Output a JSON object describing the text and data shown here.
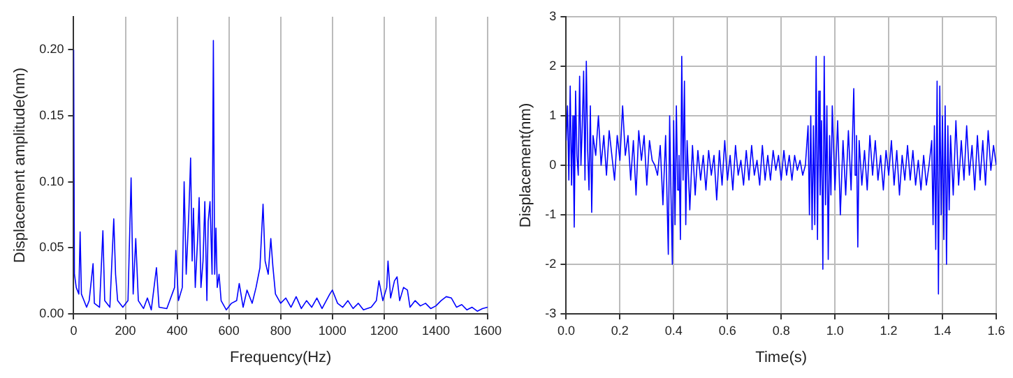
{
  "chart_data": [
    {
      "type": "line",
      "xlabel": "Frequency(Hz)",
      "ylabel": "Displacement amplitude(nm)",
      "xlim": [
        0,
        1600
      ],
      "xticks": [
        0,
        200,
        400,
        600,
        800,
        1000,
        1200,
        1400,
        1600
      ],
      "ylim": [
        0,
        0.225
      ],
      "yticks": [
        {
          "value": 0,
          "label": "0.00"
        },
        {
          "value": 0.05,
          "label": "0.05"
        },
        {
          "value": 0.1,
          "label": "0.10"
        },
        {
          "value": 0.15,
          "label": "0.15"
        },
        {
          "value": 0.2,
          "label": "0.20"
        }
      ],
      "grid": "x",
      "series": [
        {
          "color": "#0000ff",
          "x": [
            0,
            3,
            10,
            20,
            25,
            30,
            40,
            50,
            60,
            75,
            80,
            100,
            113,
            120,
            140,
            155,
            162,
            170,
            190,
            210,
            222,
            230,
            240,
            250,
            270,
            285,
            300,
            320,
            330,
            360,
            390,
            395,
            405,
            420,
            427,
            435,
            445,
            452,
            458,
            463,
            470,
            480,
            485,
            492,
            500,
            507,
            515,
            520,
            527,
            535,
            540,
            545,
            550,
            555,
            562,
            570,
            590,
            610,
            630,
            640,
            655,
            670,
            690,
            705,
            720,
            732,
            740,
            752,
            762,
            770,
            780,
            800,
            820,
            840,
            860,
            880,
            900,
            920,
            940,
            960,
            990,
            1000,
            1020,
            1040,
            1060,
            1080,
            1100,
            1120,
            1150,
            1170,
            1180,
            1195,
            1210,
            1215,
            1225,
            1240,
            1250,
            1260,
            1275,
            1290,
            1300,
            1320,
            1340,
            1360,
            1380,
            1400,
            1420,
            1440,
            1460,
            1480,
            1500,
            1520,
            1540,
            1560,
            1580,
            1600
          ],
          "values": [
            0.2,
            0.03,
            0.02,
            0.015,
            0.062,
            0.015,
            0.01,
            0.005,
            0.01,
            0.038,
            0.008,
            0.005,
            0.063,
            0.01,
            0.005,
            0.072,
            0.03,
            0.01,
            0.005,
            0.01,
            0.103,
            0.015,
            0.057,
            0.01,
            0.004,
            0.012,
            0.003,
            0.035,
            0.005,
            0.004,
            0.02,
            0.048,
            0.01,
            0.02,
            0.1,
            0.03,
            0.075,
            0.118,
            0.04,
            0.08,
            0.02,
            0.06,
            0.088,
            0.02,
            0.04,
            0.085,
            0.01,
            0.07,
            0.085,
            0.03,
            0.207,
            0.03,
            0.065,
            0.02,
            0.03,
            0.01,
            0.003,
            0.008,
            0.01,
            0.023,
            0.005,
            0.018,
            0.008,
            0.02,
            0.035,
            0.083,
            0.04,
            0.03,
            0.057,
            0.036,
            0.015,
            0.008,
            0.012,
            0.005,
            0.013,
            0.004,
            0.01,
            0.005,
            0.012,
            0.004,
            0.015,
            0.018,
            0.008,
            0.005,
            0.01,
            0.004,
            0.008,
            0.003,
            0.005,
            0.01,
            0.025,
            0.01,
            0.02,
            0.04,
            0.012,
            0.025,
            0.028,
            0.01,
            0.02,
            0.018,
            0.005,
            0.01,
            0.006,
            0.008,
            0.004,
            0.006,
            0.01,
            0.013,
            0.012,
            0.005,
            0.007,
            0.003,
            0.005,
            0.002,
            0.004,
            0.005
          ]
        }
      ]
    },
    {
      "type": "line",
      "xlabel": "Time(s)",
      "ylabel": "Displacement(nm)",
      "xlim": [
        0,
        1.6
      ],
      "xticks": [
        {
          "value": 0,
          "label": "0.0"
        },
        {
          "value": 0.2,
          "label": "0.2"
        },
        {
          "value": 0.4,
          "label": "0.4"
        },
        {
          "value": 0.6,
          "label": "0.6"
        },
        {
          "value": 0.8,
          "label": "0.8"
        },
        {
          "value": 1,
          "label": "1.0"
        },
        {
          "value": 1.2,
          "label": "1.2"
        },
        {
          "value": 1.4,
          "label": "1.4"
        },
        {
          "value": 1.6,
          "label": "1.6"
        }
      ],
      "ylim": [
        -3,
        3
      ],
      "yticks": [
        -3,
        -2,
        -1,
        0,
        1,
        2,
        3
      ],
      "grid": true,
      "series": [
        {
          "color": "#0000ff",
          "x": [
            0,
            0.005,
            0.01,
            0.015,
            0.02,
            0.025,
            0.03,
            0.035,
            0.04,
            0.045,
            0.05,
            0.055,
            0.06,
            0.065,
            0.07,
            0.075,
            0.08,
            0.085,
            0.09,
            0.095,
            0.1,
            0.11,
            0.12,
            0.13,
            0.14,
            0.15,
            0.16,
            0.17,
            0.18,
            0.19,
            0.2,
            0.21,
            0.22,
            0.23,
            0.24,
            0.25,
            0.26,
            0.27,
            0.28,
            0.29,
            0.3,
            0.31,
            0.32,
            0.33,
            0.34,
            0.35,
            0.36,
            0.37,
            0.38,
            0.385,
            0.39,
            0.395,
            0.4,
            0.405,
            0.41,
            0.415,
            0.42,
            0.425,
            0.43,
            0.435,
            0.44,
            0.445,
            0.45,
            0.46,
            0.47,
            0.48,
            0.49,
            0.5,
            0.51,
            0.52,
            0.53,
            0.54,
            0.55,
            0.56,
            0.57,
            0.58,
            0.59,
            0.6,
            0.61,
            0.62,
            0.63,
            0.64,
            0.65,
            0.66,
            0.67,
            0.68,
            0.69,
            0.7,
            0.71,
            0.72,
            0.73,
            0.74,
            0.75,
            0.76,
            0.77,
            0.78,
            0.79,
            0.8,
            0.81,
            0.82,
            0.83,
            0.84,
            0.85,
            0.86,
            0.87,
            0.88,
            0.89,
            0.9,
            0.905,
            0.91,
            0.915,
            0.92,
            0.925,
            0.93,
            0.935,
            0.94,
            0.945,
            0.95,
            0.955,
            0.96,
            0.965,
            0.97,
            0.975,
            0.98,
            0.985,
            0.99,
            1,
            1.01,
            1.02,
            1.03,
            1.04,
            1.05,
            1.06,
            1.07,
            1.075,
            1.08,
            1.085,
            1.09,
            1.1,
            1.11,
            1.12,
            1.13,
            1.14,
            1.15,
            1.16,
            1.17,
            1.18,
            1.19,
            1.2,
            1.21,
            1.22,
            1.23,
            1.24,
            1.25,
            1.26,
            1.27,
            1.28,
            1.29,
            1.3,
            1.31,
            1.32,
            1.33,
            1.34,
            1.35,
            1.36,
            1.365,
            1.37,
            1.375,
            1.38,
            1.385,
            1.39,
            1.395,
            1.4,
            1.405,
            1.41,
            1.415,
            1.42,
            1.425,
            1.43,
            1.44,
            1.45,
            1.46,
            1.47,
            1.48,
            1.49,
            1.5,
            1.51,
            1.52,
            1.53,
            1.54,
            1.55,
            1.56,
            1.57,
            1.58,
            1.59,
            1.6
          ],
          "values": [
            0.5,
            1.2,
            -0.3,
            1.6,
            -0.4,
            1.0,
            -1.25,
            1.5,
            0.2,
            -0.2,
            1.8,
            0.0,
            0.8,
            1.9,
            -0.3,
            2.1,
            0.3,
            -0.5,
            1.2,
            -0.95,
            0.6,
            0.2,
            1.0,
            0.0,
            0.6,
            -0.2,
            0.7,
            0.2,
            -0.3,
            0.6,
            0.1,
            1.2,
            0.2,
            0.6,
            -0.3,
            0.5,
            -0.6,
            0.7,
            0.1,
            0.6,
            -0.4,
            0.5,
            0.1,
            0.0,
            -0.2,
            0.4,
            -0.8,
            0.6,
            -1.8,
            1.0,
            -0.6,
            -2.0,
            0.9,
            -1.2,
            1.2,
            -0.5,
            0.2,
            -1.5,
            2.2,
            -0.3,
            1.7,
            -1.2,
            0.5,
            -0.9,
            0.4,
            -0.6,
            0.3,
            -0.3,
            0.2,
            -0.5,
            0.3,
            -0.2,
            0.2,
            -0.7,
            0.3,
            -0.4,
            0.5,
            -0.3,
            0.2,
            -0.5,
            0.4,
            -0.2,
            0.1,
            -0.4,
            0.3,
            -0.3,
            0.4,
            -0.2,
            0.1,
            -0.4,
            0.4,
            -0.3,
            0.2,
            -0.3,
            0.3,
            -0.1,
            0.2,
            -0.3,
            0.3,
            -0.2,
            0.2,
            -0.3,
            0.2,
            -0.1,
            0.1,
            -0.2,
            0.0,
            0.8,
            -1.0,
            1.0,
            -1.3,
            0.8,
            -1.2,
            2.2,
            -1.5,
            1.5,
            -0.6,
            0.9,
            -2.1,
            2.2,
            -0.8,
            1.2,
            -1.9,
            0.6,
            -0.6,
            1.2,
            -0.5,
            0.9,
            -1.0,
            0.5,
            -0.6,
            0.7,
            -0.5,
            1.55,
            -0.2,
            0.6,
            -1.65,
            0.5,
            -0.4,
            0.3,
            -0.5,
            0.6,
            -0.2,
            0.5,
            -0.3,
            0.2,
            -0.5,
            0.3,
            -0.2,
            0.5,
            -0.4,
            0.3,
            -0.6,
            0.2,
            -0.3,
            0.4,
            -0.3,
            0.3,
            -0.4,
            0.1,
            -0.5,
            0.2,
            -0.4,
            0.0,
            0.5,
            -1.2,
            0.8,
            -1.7,
            1.7,
            -2.6,
            1.6,
            -1.0,
            1.0,
            -1.5,
            1.2,
            -2.0,
            0.8,
            -0.9,
            0.6,
            -0.6,
            0.9,
            -0.4,
            0.5,
            -0.3,
            0.8,
            -0.2,
            0.4,
            -0.5,
            0.6,
            -0.3,
            0.5,
            -0.4,
            0.7,
            -0.1,
            0.4,
            0.0
          ]
        }
      ]
    }
  ]
}
